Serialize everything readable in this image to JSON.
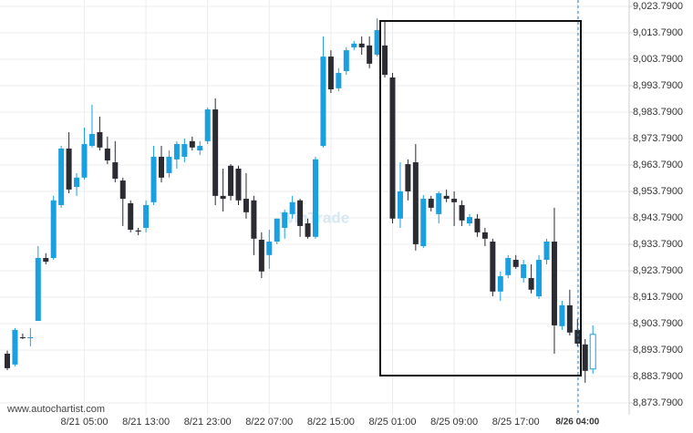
{
  "chart_data": {
    "type": "candlestick",
    "footer": "www.autochartist.com",
    "watermark": "WinTrade",
    "categories": [
      null,
      null,
      null,
      null,
      null,
      null,
      null,
      null,
      null,
      null,
      "8/21 05:00",
      null,
      null,
      null,
      null,
      null,
      null,
      null,
      "8/21 13:00",
      null,
      null,
      null,
      null,
      null,
      null,
      null,
      "8/21 23:00",
      null,
      null,
      null,
      null,
      null,
      null,
      null,
      "8/22 07:00",
      null,
      null,
      null,
      null,
      null,
      null,
      null,
      "8/22 15:00",
      null,
      null,
      null,
      null,
      null,
      null,
      null,
      "8/25 01:00",
      null,
      null,
      null,
      null,
      null,
      null,
      null,
      "8/25 09:00",
      null,
      null,
      null,
      null,
      null,
      null,
      null,
      "8/25 17:00",
      null,
      null,
      null,
      null,
      null,
      null,
      null,
      "8/26 04:00",
      null,
      null
    ],
    "open": [
      8892.4,
      8888.3,
      8898.6,
      8898.6,
      8904.8,
      8928.6,
      8928.6,
      8948.6,
      8970.0,
      8955.5,
      8959.0,
      8971.0,
      8976.2,
      8970.0,
      8964.8,
      8957.9,
      8949.3,
      8939.0,
      8940.0,
      8949.7,
      8966.9,
      8960.7,
      8965.9,
      8966.9,
      8972.8,
      8969.3,
      8972.8,
      8984.8,
      8952.1,
      8963.5,
      8962.4,
      8951.0,
      8950.4,
      8935.5,
      8929.7,
      8934.8,
      8940.0,
      8945.2,
      8950.4,
      8941.7,
      8936.6,
      8971.0,
      9004.8,
      8992.8,
      8999.3,
      9008.3,
      9009.7,
      9009.0,
      9005.5,
      9009.0,
      8996.9,
      8943.5,
      8964.1,
      8964.8,
      8933.1,
      8951.0,
      8945.2,
      8952.1,
      8951.0,
      8948.6,
      8941.7,
      8943.5,
      8938.3,
      8934.8,
      8915.9,
      8922.1,
      8927.9,
      8921.0,
      8921.0,
      8914.1,
      8927.9,
      8934.8,
      8902.8,
      8910.7,
      8901.4,
      8895.9,
      8886.6
    ],
    "high": [
      8893.5,
      8902.1,
      8900.0,
      8902.1,
      8933.1,
      8930.4,
      8952.1,
      8971.0,
      8976.2,
      8960.7,
      8977.9,
      8986.6,
      8982.1,
      8974.5,
      8972.8,
      8959.0,
      8950.4,
      8940.0,
      8950.4,
      8971.0,
      8971.0,
      8969.3,
      8972.8,
      8973.8,
      8974.5,
      8972.8,
      8985.5,
      8989.0,
      8962.4,
      8964.1,
      8963.5,
      8960.7,
      8952.1,
      8938.3,
      8939.3,
      8943.5,
      8946.9,
      8952.1,
      8951.0,
      8943.5,
      8966.9,
      9012.4,
      9007.2,
      9000.4,
      9008.3,
      9010.7,
      9012.4,
      9012.4,
      9019.3,
      9018.6,
      8998.6,
      8964.8,
      8965.9,
      8971.7,
      8952.4,
      8952.1,
      8953.8,
      8954.5,
      8953.8,
      8950.4,
      8945.2,
      8945.2,
      8940.0,
      8935.9,
      8923.5,
      8929.7,
      8929.7,
      8927.9,
      8926.2,
      8929.7,
      8935.9,
      8947.6,
      8912.4,
      8916.6,
      8905.5,
      8897.9,
      8903.1
    ],
    "low": [
      8886.2,
      8887.6,
      8897.9,
      8895.2,
      8904.8,
      8926.2,
      8927.9,
      8947.6,
      8953.1,
      8952.1,
      8958.3,
      8970.4,
      8969.3,
      8964.1,
      8957.2,
      8940.7,
      8938.3,
      8937.2,
      8938.3,
      8948.6,
      8957.2,
      8959.0,
      8962.4,
      8964.8,
      8969.3,
      8967.6,
      8971.7,
      8948.6,
      8946.2,
      8950.4,
      8948.6,
      8943.5,
      8929.7,
      8921.0,
      8924.5,
      8933.8,
      8935.9,
      8943.5,
      8936.6,
      8935.9,
      8935.9,
      8970.4,
      8991.0,
      8991.7,
      8997.9,
      9007.2,
      9005.5,
      9000.4,
      9004.8,
      8996.9,
      8941.7,
      8940.0,
      8950.4,
      8931.4,
      8932.4,
      8946.2,
      8941.7,
      8949.7,
      8940.7,
      8940.7,
      8940.7,
      8936.6,
      8933.1,
      8914.1,
      8912.4,
      8921.0,
      8924.5,
      8919.3,
      8915.2,
      8913.1,
      8926.2,
      8892.4,
      8901.4,
      8899.3,
      8895.2,
      8881.4,
      8884.8
    ],
    "close": [
      8886.9,
      8901.4,
      8898.3,
      8898.6,
      8928.6,
      8927.2,
      8950.4,
      8970.0,
      8954.5,
      8959.0,
      8971.7,
      8975.5,
      8970.4,
      8965.5,
      8958.6,
      8951.0,
      8939.3,
      8938.6,
      8948.6,
      8966.9,
      8959.0,
      8966.9,
      8971.7,
      8971.7,
      8970.4,
      8971.0,
      8984.8,
      8952.1,
      8951.0,
      8952.1,
      8950.4,
      8945.9,
      8935.9,
      8923.5,
      8934.8,
      8943.5,
      8945.9,
      8949.7,
      8940.7,
      8936.6,
      8965.9,
      9004.8,
      8992.4,
      8998.6,
      9007.2,
      9009.7,
      9008.3,
      9002.1,
      9014.8,
      8997.9,
      8943.5,
      8953.8,
      8953.8,
      8933.8,
      8951.0,
      8947.6,
      8953.1,
      8951.0,
      8949.7,
      8942.8,
      8944.1,
      8938.3,
      8935.9,
      8915.9,
      8921.7,
      8928.6,
      8925.2,
      8926.2,
      8916.6,
      8927.9,
      8934.8,
      8903.1,
      8910.7,
      8900.4,
      8896.2,
      8885.9,
      8899.7
    ],
    "up_color": "#1a9fe0",
    "down_color": "#2b2b33",
    "ylim": [
      8871.7,
      9026.2
    ],
    "yticks": [
      {
        "value": 8873.79,
        "label": "8,873.7900"
      },
      {
        "value": 8883.79,
        "label": "8,883.7900"
      },
      {
        "value": 8893.79,
        "label": "8,893.7900"
      },
      {
        "value": 8903.79,
        "label": "8,903.7900"
      },
      {
        "value": 8913.79,
        "label": "8,913.7900"
      },
      {
        "value": 8923.79,
        "label": "8,923.7900"
      },
      {
        "value": 8933.79,
        "label": "8,933.7900"
      },
      {
        "value": 8943.79,
        "label": "8,943.7900"
      },
      {
        "value": 8953.79,
        "label": "8,953.7900"
      },
      {
        "value": 8963.79,
        "label": "8,963.7900"
      },
      {
        "value": 8973.79,
        "label": "8,973.7900"
      },
      {
        "value": 8983.79,
        "label": "8,983.7900"
      },
      {
        "value": 8993.79,
        "label": "8,993.7900"
      },
      {
        "value": 9003.79,
        "label": "9,003.7900"
      },
      {
        "value": 9013.79,
        "label": "9,013.7900"
      },
      {
        "value": 9023.79,
        "label": "9,023.7900"
      }
    ],
    "grid": true
  }
}
